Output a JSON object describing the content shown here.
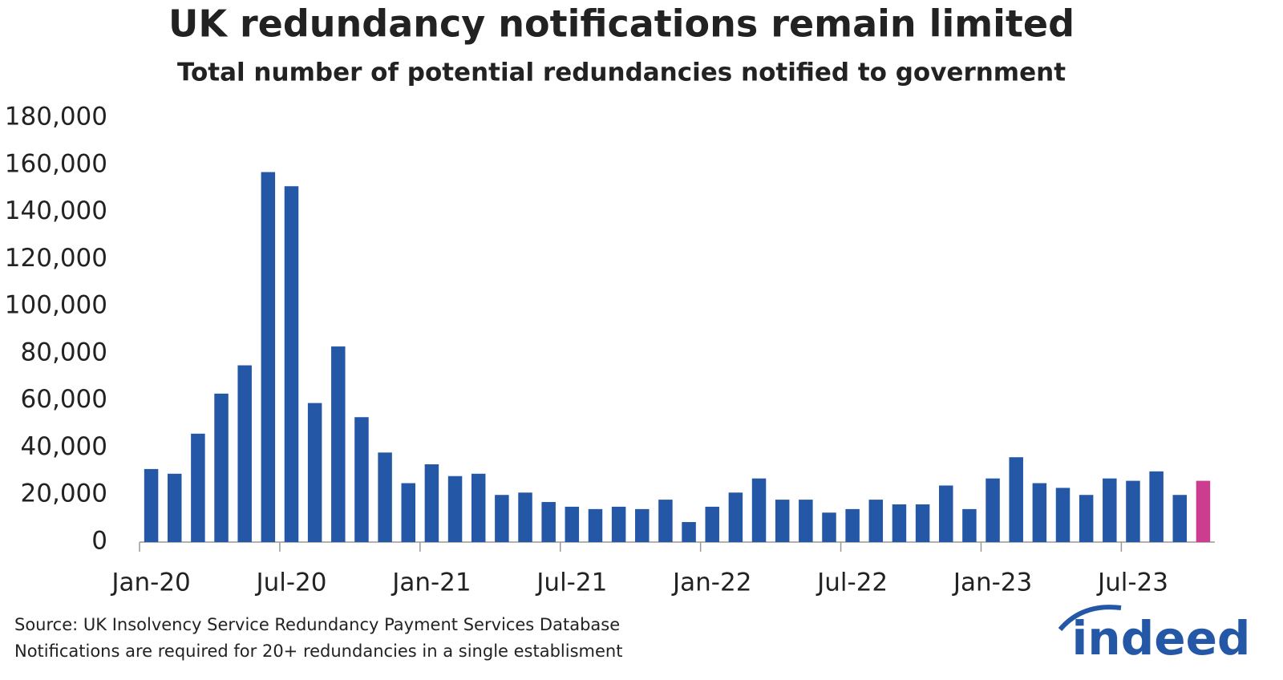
{
  "chart_data": {
    "type": "bar",
    "title": "UK redundancy notifications remain limited",
    "subtitle": "Total number of potential redundancies notified to government",
    "categories": [
      "Jan-20",
      null,
      null,
      null,
      null,
      null,
      "Jul-20",
      null,
      null,
      null,
      null,
      null,
      "Jan-21",
      null,
      null,
      null,
      null,
      null,
      "Jul-21",
      null,
      null,
      null,
      null,
      null,
      "Jan-22",
      null,
      null,
      null,
      null,
      null,
      "Jul-22",
      null,
      null,
      null,
      null,
      null,
      "Jan-23",
      null,
      null,
      null,
      null,
      null,
      "Jul-23",
      null,
      null,
      null
    ],
    "values": [
      31000,
      29000,
      46000,
      63000,
      75000,
      157000,
      151000,
      59000,
      83000,
      53000,
      38000,
      25000,
      33000,
      28000,
      29000,
      20000,
      21000,
      17000,
      15000,
      14000,
      15000,
      14000,
      18000,
      8500,
      15000,
      21000,
      27000,
      18000,
      18000,
      12500,
      14000,
      18000,
      16000,
      16000,
      24000,
      14000,
      27000,
      36000,
      25000,
      23000,
      20000,
      27000,
      26000,
      30000,
      20000,
      26000
    ],
    "colors": [
      "#2557a7",
      "#2557a7",
      "#2557a7",
      "#2557a7",
      "#2557a7",
      "#2557a7",
      "#2557a7",
      "#2557a7",
      "#2557a7",
      "#2557a7",
      "#2557a7",
      "#2557a7",
      "#2557a7",
      "#2557a7",
      "#2557a7",
      "#2557a7",
      "#2557a7",
      "#2557a7",
      "#2557a7",
      "#2557a7",
      "#2557a7",
      "#2557a7",
      "#2557a7",
      "#2557a7",
      "#2557a7",
      "#2557a7",
      "#2557a7",
      "#2557a7",
      "#2557a7",
      "#2557a7",
      "#2557a7",
      "#2557a7",
      "#2557a7",
      "#2557a7",
      "#2557a7",
      "#2557a7",
      "#2557a7",
      "#2557a7",
      "#2557a7",
      "#2557a7",
      "#2557a7",
      "#2557a7",
      "#2557a7",
      "#2557a7",
      "#2557a7",
      "#cd3d8f"
    ],
    "ylim": [
      0,
      180000
    ],
    "yticks": [
      0,
      {
        "value": 20000,
        "label": "20,000"
      },
      {
        "value": 40000,
        "label": "40,000"
      },
      {
        "value": 60000,
        "label": "60,000"
      },
      {
        "value": 80000,
        "label": "80,000"
      },
      {
        "value": 100000,
        "label": "100,000"
      },
      {
        "value": 120000,
        "label": "120,000"
      },
      {
        "value": 140000,
        "label": "140,000"
      },
      {
        "value": 160000,
        "label": "160,000"
      },
      {
        "value": 180000,
        "label": "180,000"
      }
    ],
    "grid": false,
    "source": "Source: UK Insolvency Service Redundancy Payment Services Database",
    "note": "Notifications are required for 20+ redundancies in a single establisment",
    "logo": "indeed"
  }
}
